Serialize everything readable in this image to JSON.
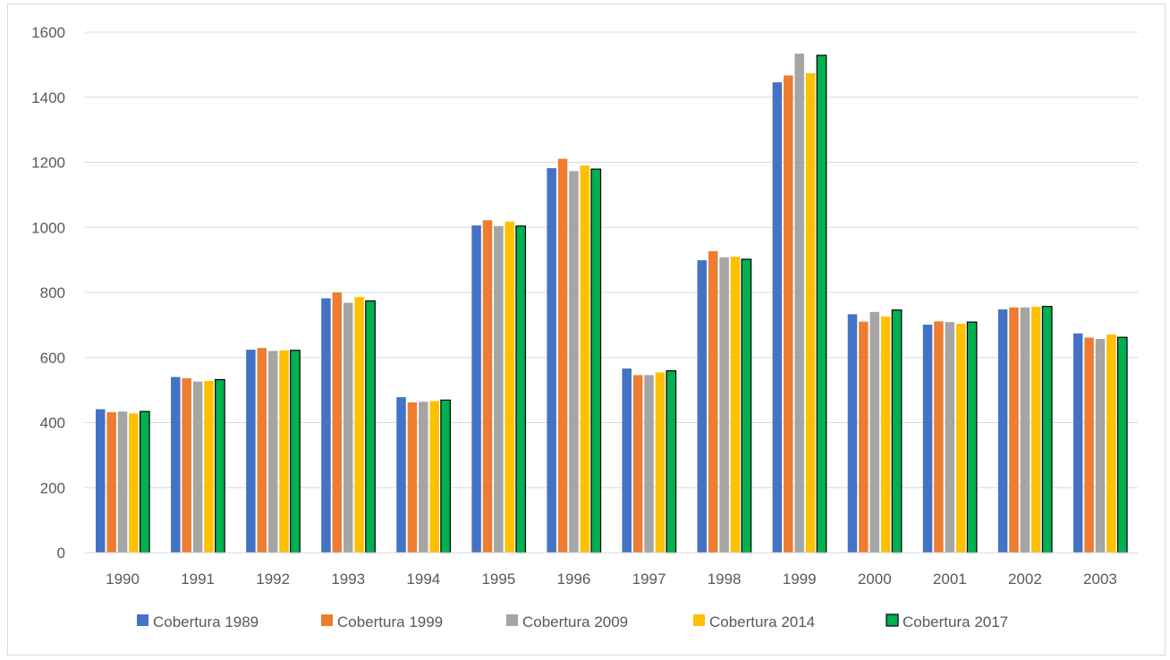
{
  "chart_data": {
    "type": "bar",
    "title": "",
    "xlabel": "",
    "ylabel": "",
    "ylim": [
      0,
      1600
    ],
    "yticks": [
      0,
      200,
      400,
      600,
      800,
      1000,
      1200,
      1400,
      1600
    ],
    "grid": true,
    "legend_position": "bottom",
    "categories": [
      "1990",
      "1991",
      "1992",
      "1993",
      "1994",
      "1995",
      "1996",
      "1997",
      "1998",
      "1999",
      "2000",
      "2001",
      "2002",
      "2003"
    ],
    "series": [
      {
        "name": "Cobertura 1989",
        "color": "#4472c4",
        "outline": false,
        "values": [
          441,
          540,
          624,
          782,
          478,
          1006,
          1182,
          566,
          899,
          1446,
          733,
          701,
          748,
          674
        ]
      },
      {
        "name": "Cobertura 1999",
        "color": "#ed7d31",
        "outline": false,
        "values": [
          432,
          536,
          629,
          800,
          462,
          1022,
          1211,
          546,
          927,
          1467,
          710,
          711,
          754,
          661
        ]
      },
      {
        "name": "Cobertura 2009",
        "color": "#a5a5a5",
        "outline": false,
        "values": [
          434,
          526,
          620,
          768,
          464,
          1004,
          1173,
          546,
          908,
          1534,
          740,
          709,
          754,
          657
        ]
      },
      {
        "name": "Cobertura 2014",
        "color": "#ffc000",
        "outline": false,
        "values": [
          428,
          528,
          622,
          786,
          466,
          1018,
          1190,
          554,
          910,
          1474,
          726,
          704,
          756,
          671
        ]
      },
      {
        "name": "Cobertura 2017",
        "color": "#00b050",
        "outline": true,
        "values": [
          434,
          532,
          622,
          774,
          469,
          1004,
          1179,
          559,
          902,
          1529,
          746,
          709,
          757,
          662
        ]
      }
    ]
  }
}
